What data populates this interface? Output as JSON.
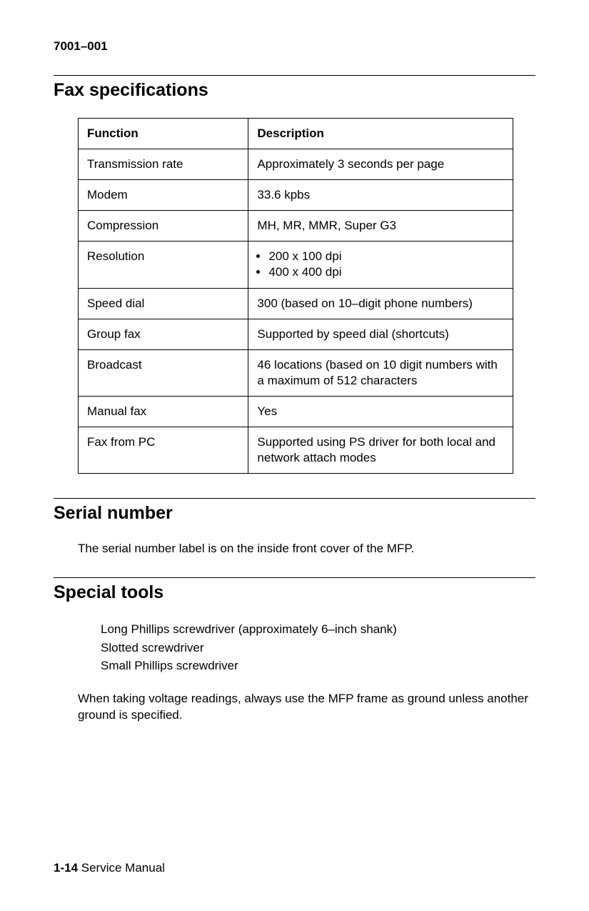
{
  "doc_number": "7001–001",
  "sections": {
    "fax": {
      "heading": "Fax specifications",
      "columns": [
        "Function",
        "Description"
      ],
      "rows": [
        {
          "fn": "Transmission rate",
          "desc": "Approximately 3 seconds per page"
        },
        {
          "fn": "Modem",
          "desc": "33.6 kpbs"
        },
        {
          "fn": "Compression",
          "desc": "MH, MR, MMR, Super G3"
        },
        {
          "fn": "Resolution",
          "desc_list": [
            "200 x 100 dpi",
            "400 x 400 dpi"
          ]
        },
        {
          "fn": "Speed dial",
          "desc": "300 (based on 10–digit phone numbers)"
        },
        {
          "fn": "Group fax",
          "desc": "Supported by speed dial (shortcuts)"
        },
        {
          "fn": "Broadcast",
          "desc": "46 locations (based on 10 digit numbers with a maximum of 512 characters"
        },
        {
          "fn": "Manual fax",
          "desc": "Yes"
        },
        {
          "fn": "Fax from PC",
          "desc": "Supported using PS driver for both local and network attach modes"
        }
      ]
    },
    "serial": {
      "heading": "Serial number",
      "text": "The serial number label is on the inside front cover of the MFP."
    },
    "tools": {
      "heading": "Special tools",
      "list": [
        "Long Phillips screwdriver (approximately 6–inch shank)",
        "Slotted screwdriver",
        "Small Phillips screwdriver"
      ],
      "note": "When taking voltage readings, always use the MFP frame as ground unless another ground is specified."
    }
  },
  "footer": {
    "page": "1-14",
    "label": "Service Manual"
  }
}
